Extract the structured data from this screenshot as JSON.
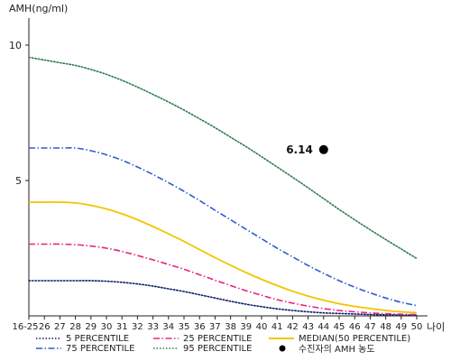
{
  "chart_data": {
    "type": "line",
    "ylabel": "AMH(ng/ml)",
    "xlabel": "나이",
    "x_tick_labels": [
      "16-25",
      "26",
      "27",
      "28",
      "29",
      "30",
      "31",
      "32",
      "33",
      "34",
      "35",
      "36",
      "37",
      "38",
      "39",
      "40",
      "41",
      "42",
      "43",
      "44",
      "45",
      "46",
      "47",
      "48",
      "49",
      "50"
    ],
    "y_ticks": [
      5,
      10
    ],
    "ylim": [
      0,
      11
    ],
    "grid": false,
    "legend_position": "bottom",
    "series": [
      {
        "name": "5 PERCENTILE",
        "color": "#0b1f6b",
        "dash": "dotted",
        "values": [
          1.3,
          1.3,
          1.3,
          1.3,
          1.3,
          1.28,
          1.24,
          1.18,
          1.1,
          1.0,
          0.9,
          0.78,
          0.66,
          0.54,
          0.43,
          0.34,
          0.26,
          0.2,
          0.15,
          0.11,
          0.09,
          0.07,
          0.05,
          0.04,
          0.03,
          0.03
        ]
      },
      {
        "name": "25 PERCENTILE",
        "color": "#e8237f",
        "dash": "dashdot",
        "values": [
          2.65,
          2.65,
          2.65,
          2.63,
          2.58,
          2.5,
          2.38,
          2.23,
          2.07,
          1.9,
          1.72,
          1.52,
          1.32,
          1.12,
          0.93,
          0.76,
          0.6,
          0.47,
          0.36,
          0.27,
          0.2,
          0.15,
          0.11,
          0.08,
          0.06,
          0.05
        ]
      },
      {
        "name": "MEDIAN(50 PERCENTILE)",
        "color": "#f2c500",
        "dash": "solid",
        "values": [
          4.2,
          4.2,
          4.2,
          4.17,
          4.08,
          3.95,
          3.77,
          3.55,
          3.3,
          3.03,
          2.75,
          2.45,
          2.15,
          1.87,
          1.6,
          1.35,
          1.12,
          0.91,
          0.73,
          0.58,
          0.45,
          0.35,
          0.27,
          0.2,
          0.15,
          0.12
        ]
      },
      {
        "name": "75 PERCENTILE",
        "color": "#2f5bd0",
        "dash": "dashdot",
        "values": [
          6.2,
          6.2,
          6.2,
          6.2,
          6.1,
          5.95,
          5.75,
          5.5,
          5.22,
          4.92,
          4.6,
          4.26,
          3.9,
          3.55,
          3.2,
          2.85,
          2.5,
          2.18,
          1.86,
          1.57,
          1.3,
          1.06,
          0.85,
          0.66,
          0.5,
          0.38
        ]
      },
      {
        "name": "95 PERCENTILE",
        "color": "#2e7d4f",
        "dash": "dotted",
        "values": [
          9.55,
          9.45,
          9.35,
          9.25,
          9.1,
          8.92,
          8.7,
          8.45,
          8.18,
          7.9,
          7.6,
          7.28,
          6.95,
          6.6,
          6.25,
          5.88,
          5.5,
          5.12,
          4.73,
          4.33,
          3.93,
          3.55,
          3.18,
          2.82,
          2.47,
          2.12
        ]
      }
    ],
    "patient_point": {
      "name": "수진자의 AMH 농도",
      "x_label": "44",
      "value": 6.14,
      "label": "6.14",
      "color": "#000000"
    }
  }
}
